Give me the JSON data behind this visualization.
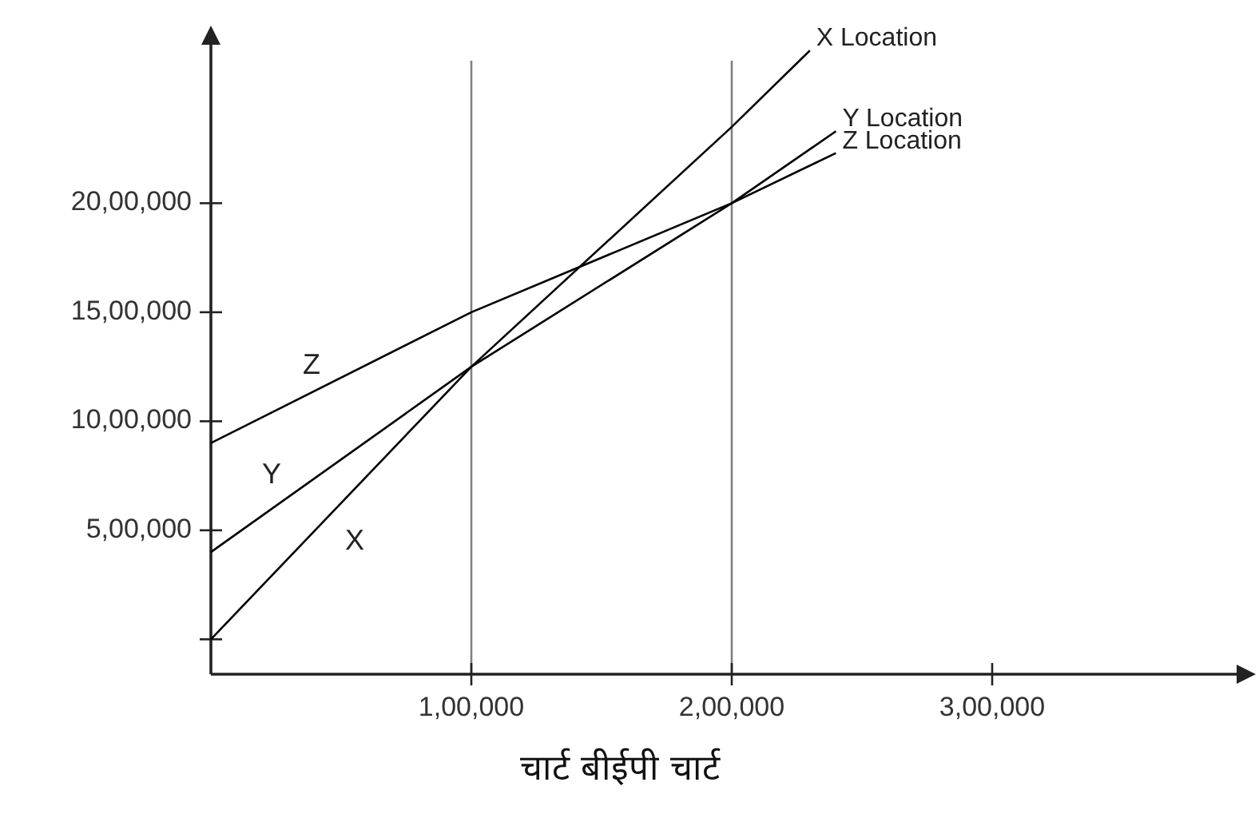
{
  "chart_data": {
    "type": "line",
    "title": "चार्ट बीईपी चार्ट",
    "series": [
      {
        "name": "X Location",
        "color": "#000000",
        "x": [
          0,
          100000,
          200000,
          230000
        ],
        "values": [
          0,
          1250000,
          2350000,
          2700000
        ]
      },
      {
        "name": "Y Location",
        "color": "#000000",
        "x": [
          0,
          100000,
          200000,
          240000
        ],
        "values": [
          400000,
          1250000,
          2000000,
          2330000
        ]
      },
      {
        "name": "Z Location",
        "color": "#000000",
        "x": [
          0,
          100000,
          200000,
          240000
        ],
        "values": [
          900000,
          1500000,
          2000000,
          2230000
        ]
      }
    ],
    "xlim": [
      0,
      400000
    ],
    "ylim": [
      -160000,
      2800000
    ],
    "xticks": [
      {
        "value": 100000,
        "label": "1,00,000"
      },
      {
        "value": 200000,
        "label": "2,00,000"
      },
      {
        "value": 300000,
        "label": "3,00,000"
      }
    ],
    "yticks": [
      {
        "value": 0,
        "label": null
      },
      {
        "value": 500000,
        "label": "5,00,000"
      },
      {
        "value": 1000000,
        "label": "10,00,000"
      },
      {
        "value": 1500000,
        "label": "15,00,000"
      },
      {
        "value": 2000000,
        "label": "20,00,000"
      }
    ],
    "ref_lines": [
      {
        "axis": "x",
        "value": 100000,
        "label": null,
        "color": "#808080"
      },
      {
        "axis": "x",
        "value": 200000,
        "label": null,
        "color": "#808080"
      }
    ],
    "annotations": [
      "X",
      "Y",
      "Z"
    ],
    "grid": false,
    "marker": "none",
    "line_style": "solid"
  }
}
